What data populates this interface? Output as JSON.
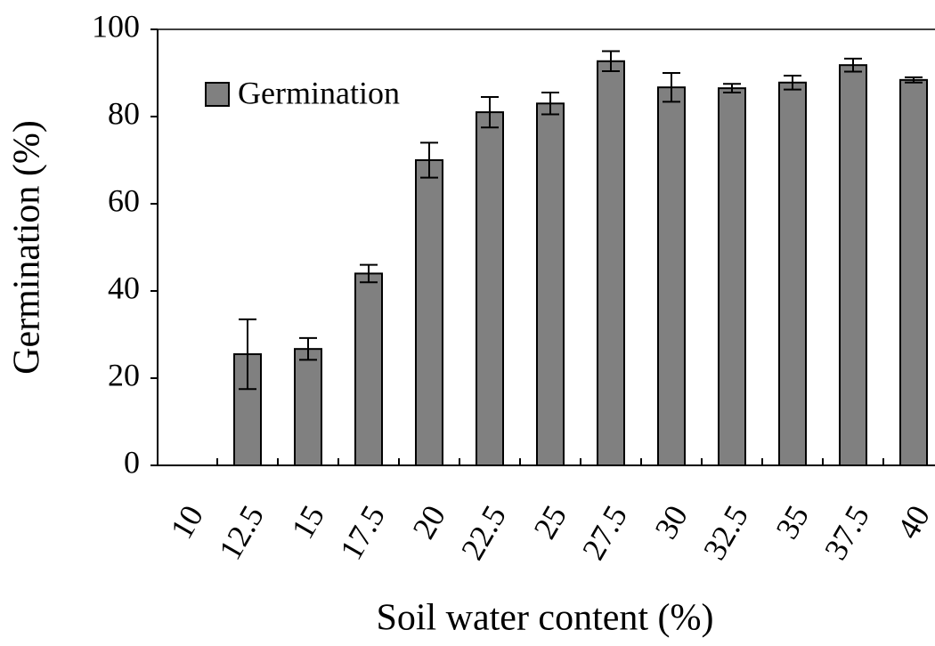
{
  "chart_data": {
    "type": "bar",
    "x_label": "Soil water content (%)",
    "y_label": "Germination (%)",
    "categories": [
      "10",
      "12.5",
      "15",
      "17.5",
      "20",
      "22.5",
      "25",
      "27.5",
      "30",
      "32.5",
      "35",
      "37.5",
      "40"
    ],
    "series": [
      {
        "name": "Germination",
        "color": "#808080",
        "values": [
          0,
          25.5,
          26.7,
          44,
          70,
          81,
          83,
          92.7,
          86.7,
          86.5,
          87.8,
          91.8,
          88.4
        ],
        "errors": [
          0,
          8,
          2.5,
          2,
          4,
          3.5,
          2.5,
          2.3,
          3.3,
          1,
          1.6,
          1.5,
          0.6
        ]
      }
    ],
    "ylim": [
      0,
      100
    ],
    "yticks": [
      0,
      20,
      40,
      60,
      80,
      100
    ],
    "legend": "upper left"
  }
}
